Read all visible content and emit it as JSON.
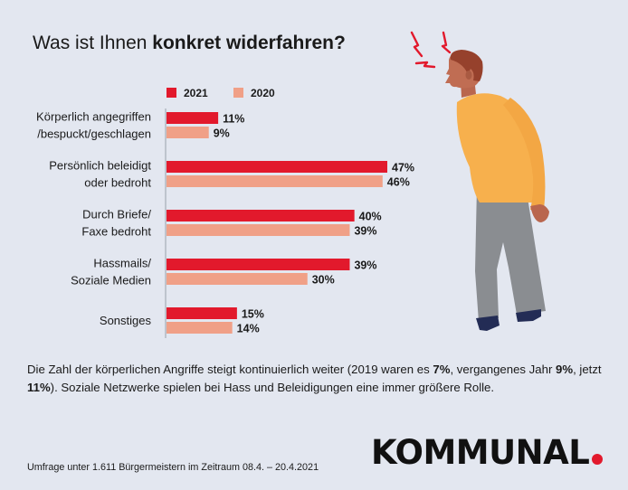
{
  "title": {
    "prefix": "Was ist Ihnen ",
    "bold": "konkret widerfahren?"
  },
  "colors": {
    "background": "#e3e7f0",
    "series_2021": "#e2192c",
    "series_2020": "#f0a087",
    "logo_dot": "#e2192c"
  },
  "chart_data": {
    "type": "bar",
    "orientation": "horizontal",
    "categories": [
      [
        "Körperlich angegriffen",
        "/bespuckt/geschlagen"
      ],
      [
        "Persönlich beleidigt",
        "oder bedroht"
      ],
      [
        "Durch Briefe/",
        "Faxe bedroht"
      ],
      [
        "Hassmails/",
        "Soziale Medien"
      ],
      [
        "Sonstiges"
      ]
    ],
    "series": [
      {
        "name": "2021",
        "values": [
          11,
          47,
          40,
          39,
          15
        ],
        "color": "#e2192c"
      },
      {
        "name": "2020",
        "values": [
          9,
          46,
          39,
          30,
          14
        ],
        "color": "#f0a087"
      }
    ],
    "value_labels": [
      [
        "11%",
        "47%",
        "40%",
        "39%",
        "15%"
      ],
      [
        "9%",
        "46%",
        "39%",
        "30%",
        "14%"
      ]
    ],
    "unit": "%",
    "xlim": [
      0,
      47
    ],
    "legend_position": "top",
    "grid": false
  },
  "description": {
    "part1": "Die Zahl der körperlichen Angriffe steigt kontinuierlich weiter (2019 waren es ",
    "bold1": "7%",
    "part2": ", vergangenes Jahr ",
    "bold2": "9%",
    "part3": ", jetzt ",
    "bold3": "11%",
    "part4": "). Soziale Netzwerke spielen bei Hass und Beleidigungen eine immer größere Rolle."
  },
  "footnote": "Umfrage unter 1.611 Bürgermeistern im Zeitraum 08.4. – 20.4.2021",
  "logo": {
    "text": "KOMMUNAL"
  },
  "illustration": {
    "name": "angry-man-illustration"
  }
}
